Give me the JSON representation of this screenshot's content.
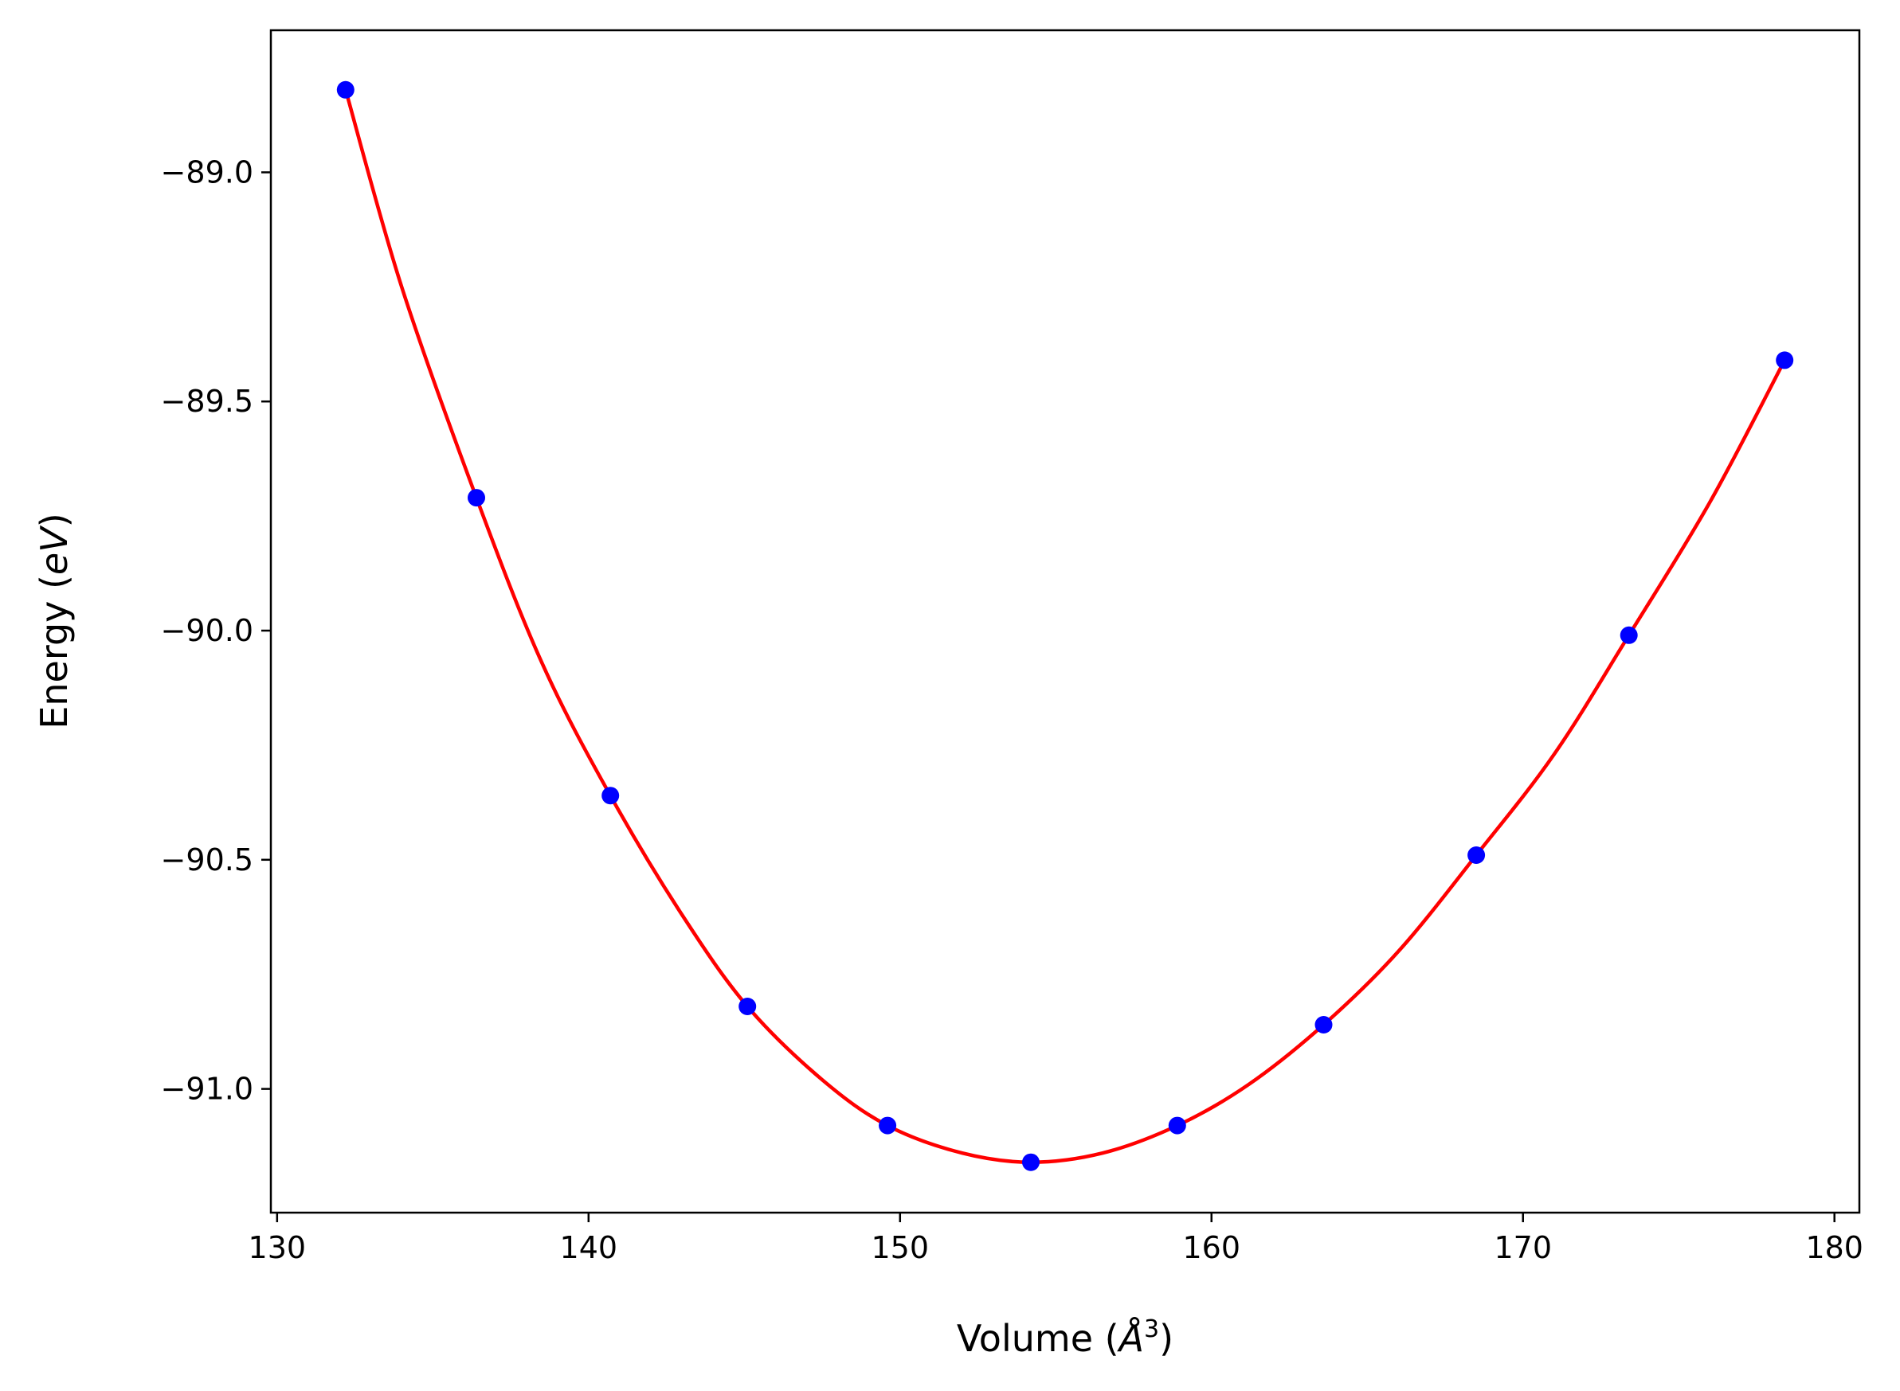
{
  "chart_data": {
    "type": "line",
    "title": "",
    "xlabel": "Volume (",
    "xlabel_symbol": "Å",
    "xlabel_sup": "3",
    "xlabel_close": ")",
    "ylabel": "Energy (",
    "ylabel_unit": "eV",
    "ylabel_close": ")",
    "xlim": [
      129.8,
      180.8
    ],
    "ylim": [
      -91.27,
      -88.69
    ],
    "xticks": [
      130,
      140,
      150,
      160,
      170,
      180
    ],
    "xtick_labels": [
      "130",
      "140",
      "150",
      "160",
      "170",
      "180"
    ],
    "yticks": [
      -89.0,
      -89.5,
      -90.0,
      -90.5,
      -91.0
    ],
    "ytick_labels": [
      "−89.0",
      "−89.5",
      "−90.0",
      "−90.5",
      "−91.0"
    ],
    "grid": false,
    "series": [
      {
        "kind": "scatter",
        "color": "#0000ff",
        "x": [
          132.2,
          136.4,
          140.7,
          145.1,
          149.6,
          154.2,
          158.9,
          163.6,
          168.5,
          173.4,
          178.4
        ],
        "y": [
          -88.82,
          -89.71,
          -90.36,
          -90.82,
          -91.08,
          -91.16,
          -91.08,
          -90.86,
          -90.49,
          -90.01,
          -89.41
        ]
      },
      {
        "kind": "line",
        "color": "#ff0000",
        "x": [
          132.2,
          134.0,
          136.4,
          138.5,
          140.7,
          143.0,
          145.1,
          147.5,
          149.6,
          152.0,
          154.2,
          156.5,
          158.9,
          161.2,
          163.6,
          166.0,
          168.5,
          171.0,
          173.4,
          176.0,
          178.4
        ],
        "y": [
          -88.82,
          -89.25,
          -89.71,
          -90.07,
          -90.36,
          -90.62,
          -90.82,
          -90.98,
          -91.08,
          -91.14,
          -91.16,
          -91.14,
          -91.08,
          -90.99,
          -90.86,
          -90.7,
          -90.49,
          -90.27,
          -90.01,
          -89.72,
          -89.41
        ]
      }
    ]
  }
}
